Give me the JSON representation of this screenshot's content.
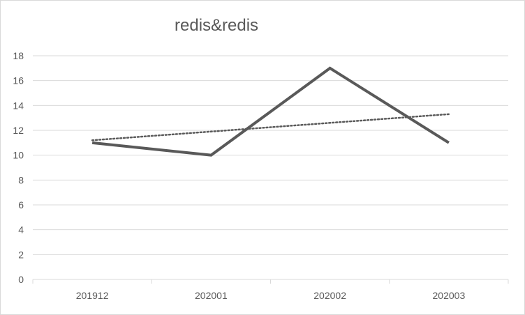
{
  "chart_data": {
    "type": "line",
    "title": "redis&redis",
    "xlabel": "",
    "ylabel": "",
    "categories": [
      "201912",
      "202001",
      "202002",
      "202003"
    ],
    "series": [
      {
        "values": [
          11,
          10,
          17,
          11
        ],
        "color": "#595959",
        "style": "solid"
      }
    ],
    "trendline": {
      "type": "linear",
      "values": [
        11.2,
        11.9,
        12.6,
        13.3
      ],
      "color": "#595959",
      "style": "dotted"
    },
    "ylim": [
      0,
      18
    ],
    "yticks": [
      0,
      2,
      4,
      6,
      8,
      10,
      12,
      14,
      16,
      18
    ],
    "grid": true,
    "legend": "none"
  }
}
